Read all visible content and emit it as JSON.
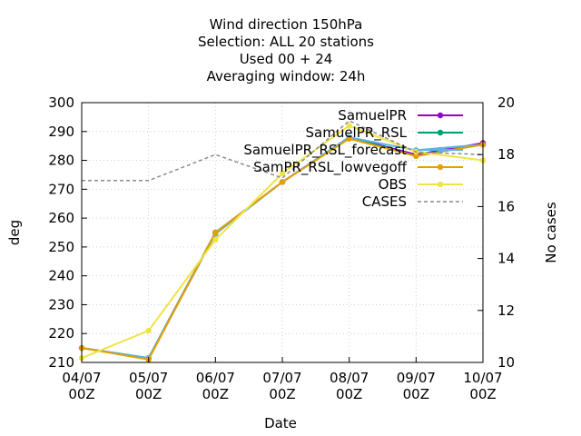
{
  "chart_data": {
    "type": "line",
    "title": [
      "Wind direction 150hPa",
      "Selection: ALL      20 stations",
      "Used  00 + 24",
      "Averaging window: 24h"
    ],
    "xlabel": "Date",
    "ylabel": "deg",
    "y2label": "No cases",
    "categories": [
      [
        "04/07",
        "00Z"
      ],
      [
        "05/07",
        "00Z"
      ],
      [
        "06/07",
        "00Z"
      ],
      [
        "07/07",
        "00Z"
      ],
      [
        "08/07",
        "00Z"
      ],
      [
        "09/07",
        "00Z"
      ],
      [
        "10/07",
        "00Z"
      ]
    ],
    "ylim": [
      210,
      300
    ],
    "y2lim": [
      10,
      20
    ],
    "yticks": [
      210,
      220,
      230,
      240,
      250,
      260,
      270,
      280,
      290,
      300
    ],
    "y2ticks": [
      10,
      12,
      14,
      16,
      18,
      20
    ],
    "grid": true,
    "legend_position": "top-right",
    "series": [
      {
        "name": "SamuelPR",
        "color": "#9400d3",
        "axis": "y",
        "values": [
          215,
          211.5,
          255,
          272.5,
          288,
          282,
          286
        ]
      },
      {
        "name": "SamuelPR_RSL",
        "color": "#009e73",
        "axis": "y",
        "values": [
          215,
          211.5,
          255,
          272.5,
          288,
          281.5,
          285.5
        ]
      },
      {
        "name": "SamuelPR_RSL_forecast",
        "color": "#56b4e9",
        "axis": "y",
        "values": [
          215,
          211.5,
          254.5,
          272.5,
          288,
          283.5,
          285.5
        ]
      },
      {
        "name": "SamPR_RSL_lowvegoff",
        "color": "#e69f00",
        "axis": "y",
        "values": [
          215,
          211,
          255,
          272.5,
          287.5,
          281.5,
          285.5
        ]
      },
      {
        "name": "OBS",
        "color": "#f0e442",
        "axis": "y",
        "values": [
          211.5,
          221,
          252.5,
          275.5,
          292,
          283,
          280
        ]
      },
      {
        "name": "CASES",
        "color": "#8c8c8c",
        "axis": "y2",
        "dashed": true,
        "values": [
          17,
          17,
          18,
          17.1,
          19.3,
          18.1,
          18
        ]
      }
    ]
  }
}
